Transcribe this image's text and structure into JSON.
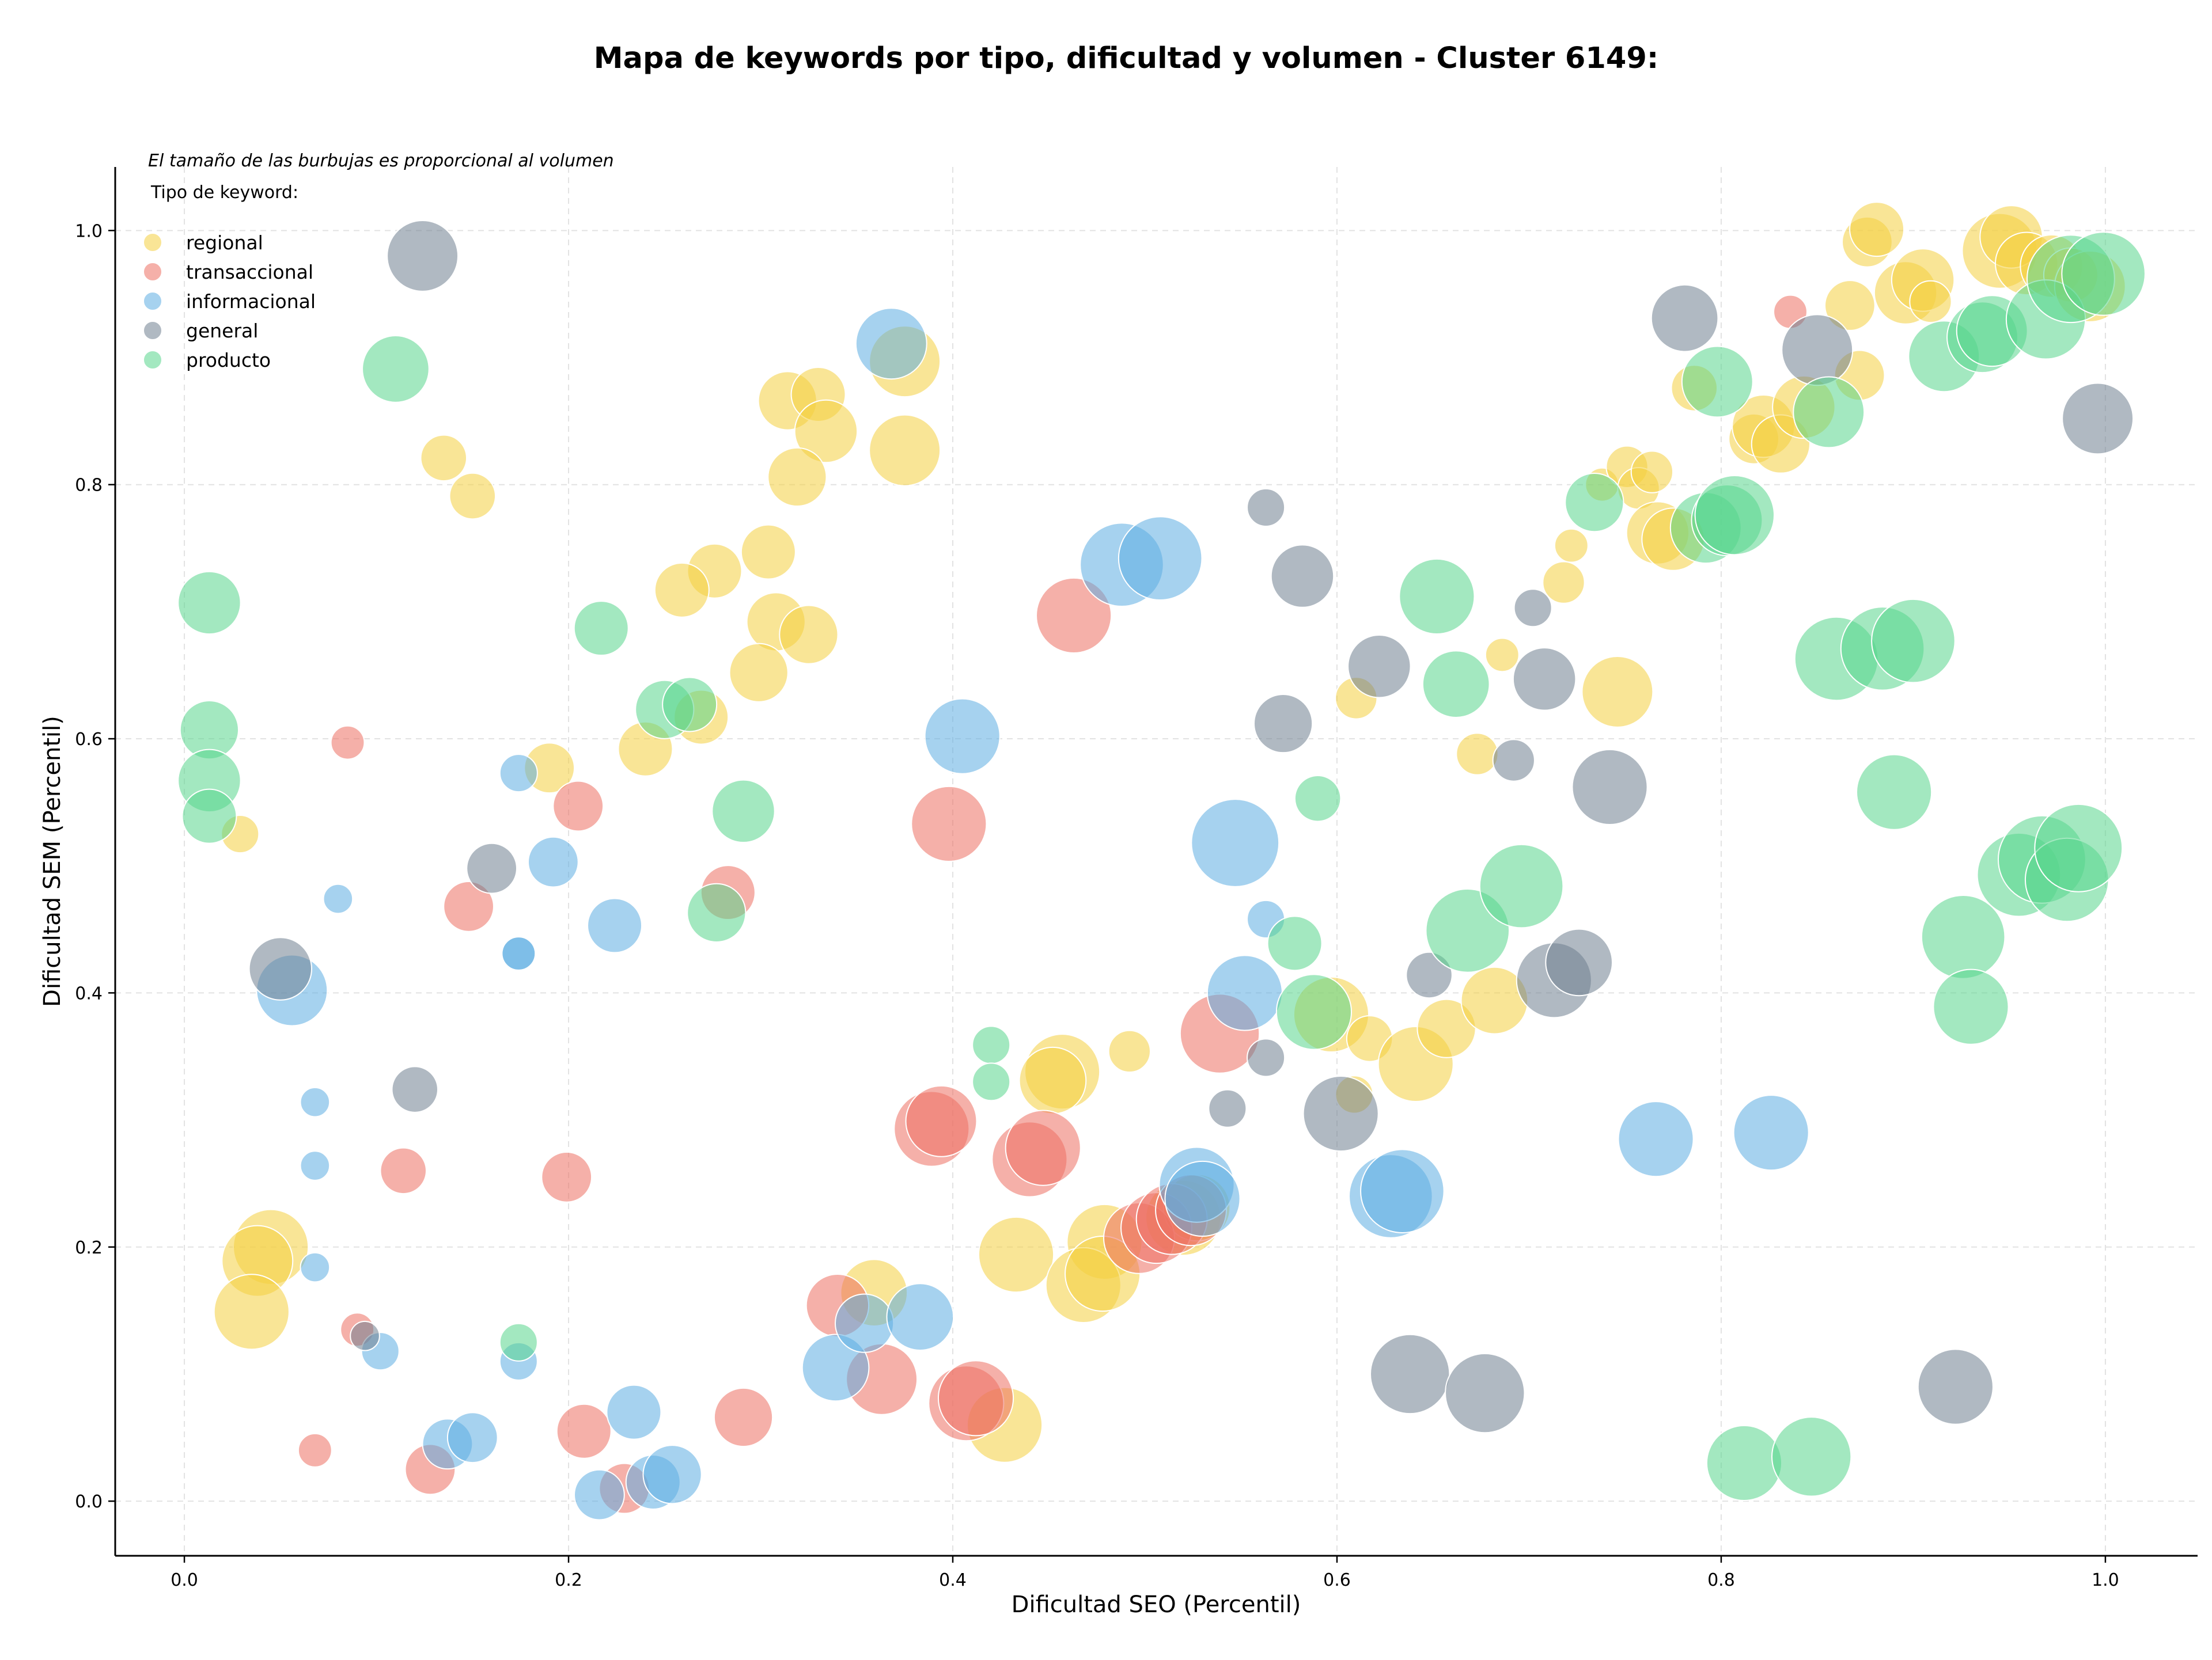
{
  "chart_data": {
    "type": "scatter",
    "title": "Mapa de keywords por tipo, dificultad y volumen - Cluster 6149:",
    "xlabel": "Dificultad SEO (Percentil)",
    "ylabel": "Dificultad SEM (Percentil)",
    "note": "El tamaño de las burbujas es proporcional al volumen",
    "legend_title": "Tipo de keyword:",
    "legend_position": "top-left",
    "grid": true,
    "xlim": [
      -0.036,
      1.048
    ],
    "ylim": [
      -0.043,
      1.05
    ],
    "x_ticks": [
      "0.0",
      "0.2",
      "0.4",
      "0.6",
      "0.8",
      "1.0"
    ],
    "y_ticks": [
      "0.0",
      "0.2",
      "0.4",
      "0.6",
      "0.8",
      "1.0"
    ],
    "series": [
      {
        "name": "regional",
        "color": "#f4d03f",
        "points": [
          [
            0.135,
            0.821,
            11
          ],
          [
            0.15,
            0.791,
            11
          ],
          [
            0.029,
            0.525,
            9
          ],
          [
            0.19,
            0.577,
            12
          ],
          [
            0.045,
            0.2,
            18
          ],
          [
            0.038,
            0.189,
            17
          ],
          [
            0.035,
            0.149,
            18
          ],
          [
            0.314,
            0.866,
            14
          ],
          [
            0.33,
            0.871,
            13
          ],
          [
            0.334,
            0.842,
            15
          ],
          [
            0.319,
            0.806,
            14
          ],
          [
            0.375,
            0.897,
            17
          ],
          [
            0.375,
            0.827,
            17
          ],
          [
            0.304,
            0.747,
            13
          ],
          [
            0.276,
            0.732,
            13
          ],
          [
            0.259,
            0.717,
            13
          ],
          [
            0.308,
            0.692,
            14
          ],
          [
            0.325,
            0.682,
            14
          ],
          [
            0.299,
            0.652,
            14
          ],
          [
            0.269,
            0.617,
            13
          ],
          [
            0.24,
            0.592,
            13
          ],
          [
            0.492,
            0.354,
            10
          ],
          [
            0.433,
            0.194,
            18
          ],
          [
            0.427,
            0.06,
            18
          ],
          [
            0.479,
            0.204,
            18
          ],
          [
            0.468,
            0.17,
            18
          ],
          [
            0.478,
            0.179,
            18
          ],
          [
            0.359,
            0.164,
            16
          ],
          [
            0.457,
            0.338,
            18
          ],
          [
            0.452,
            0.331,
            16
          ],
          [
            0.597,
            0.383,
            18
          ],
          [
            0.617,
            0.364,
            11
          ],
          [
            0.609,
            0.32,
            9
          ],
          [
            0.641,
            0.344,
            18
          ],
          [
            0.657,
            0.372,
            14
          ],
          [
            0.682,
            0.394,
            16
          ],
          [
            0.61,
            0.632,
            10
          ],
          [
            0.686,
            0.666,
            8
          ],
          [
            0.673,
            0.588,
            10
          ],
          [
            0.718,
            0.723,
            10
          ],
          [
            0.722,
            0.752,
            8
          ],
          [
            0.746,
            0.637,
            17
          ],
          [
            0.738,
            0.8,
            8
          ],
          [
            0.751,
            0.814,
            10
          ],
          [
            0.757,
            0.797,
            10
          ],
          [
            0.764,
            0.81,
            10
          ],
          [
            0.767,
            0.762,
            15
          ],
          [
            0.775,
            0.757,
            15
          ],
          [
            0.786,
            0.876,
            11
          ],
          [
            0.817,
            0.836,
            12
          ],
          [
            0.822,
            0.846,
            15
          ],
          [
            0.831,
            0.832,
            14
          ],
          [
            0.843,
            0.861,
            15
          ],
          [
            0.867,
            0.941,
            12
          ],
          [
            0.872,
            0.886,
            12
          ],
          [
            0.876,
            0.991,
            12
          ],
          [
            0.881,
            1.001,
            13
          ],
          [
            0.896,
            0.951,
            15
          ],
          [
            0.905,
            0.961,
            15
          ],
          [
            0.909,
            0.944,
            10
          ],
          [
            0.945,
            0.984,
            18
          ],
          [
            0.951,
            0.995,
            15
          ],
          [
            0.959,
            0.974,
            15
          ],
          [
            0.972,
            0.972,
            15
          ],
          [
            0.982,
            0.965,
            13
          ],
          [
            0.992,
            0.956,
            17
          ],
          [
            0.52,
            0.223,
            18
          ],
          [
            0.527,
            0.231,
            16
          ]
        ]
      },
      {
        "name": "transaccional",
        "color": "#ec7063",
        "points": [
          [
            0.085,
            0.597,
            8
          ],
          [
            0.148,
            0.468,
            12
          ],
          [
            0.205,
            0.547,
            12
          ],
          [
            0.283,
            0.479,
            13
          ],
          [
            0.114,
            0.26,
            11
          ],
          [
            0.199,
            0.255,
            12
          ],
          [
            0.068,
            0.04,
            8
          ],
          [
            0.128,
            0.025,
            12
          ],
          [
            0.09,
            0.135,
            8
          ],
          [
            0.208,
            0.055,
            13
          ],
          [
            0.229,
            0.01,
            12
          ],
          [
            0.291,
            0.066,
            14
          ],
          [
            0.463,
            0.697,
            18
          ],
          [
            0.398,
            0.533,
            18
          ],
          [
            0.389,
            0.293,
            18
          ],
          [
            0.394,
            0.299,
            17
          ],
          [
            0.44,
            0.269,
            18
          ],
          [
            0.447,
            0.278,
            18
          ],
          [
            0.34,
            0.154,
            15
          ],
          [
            0.363,
            0.096,
            17
          ],
          [
            0.407,
            0.077,
            18
          ],
          [
            0.412,
            0.081,
            18
          ],
          [
            0.497,
            0.207,
            17
          ],
          [
            0.506,
            0.215,
            17
          ],
          [
            0.514,
            0.222,
            17
          ],
          [
            0.524,
            0.229,
            17
          ],
          [
            0.539,
            0.368,
            19
          ],
          [
            0.836,
            0.936,
            8
          ]
        ]
      },
      {
        "name": "informacional",
        "color": "#5dade2",
        "points": [
          [
            0.174,
            0.573,
            9
          ],
          [
            0.08,
            0.474,
            7
          ],
          [
            0.192,
            0.503,
            12
          ],
          [
            0.224,
            0.453,
            13
          ],
          [
            0.174,
            0.431,
            8
          ],
          [
            0.174,
            0.431,
            8
          ],
          [
            0.056,
            0.402,
            17
          ],
          [
            0.068,
            0.314,
            7
          ],
          [
            0.068,
            0.264,
            7
          ],
          [
            0.068,
            0.184,
            7
          ],
          [
            0.102,
            0.118,
            9
          ],
          [
            0.174,
            0.11,
            9
          ],
          [
            0.137,
            0.045,
            12
          ],
          [
            0.15,
            0.05,
            12
          ],
          [
            0.216,
            0.005,
            12
          ],
          [
            0.234,
            0.07,
            13
          ],
          [
            0.244,
            0.015,
            13
          ],
          [
            0.254,
            0.021,
            14
          ],
          [
            0.339,
            0.105,
            16
          ],
          [
            0.354,
            0.14,
            14
          ],
          [
            0.383,
            0.145,
            16
          ],
          [
            0.368,
            0.911,
            17
          ],
          [
            0.405,
            0.602,
            18
          ],
          [
            0.488,
            0.737,
            20
          ],
          [
            0.508,
            0.742,
            20
          ],
          [
            0.547,
            0.518,
            21
          ],
          [
            0.552,
            0.4,
            18
          ],
          [
            0.563,
            0.458,
            9
          ],
          [
            0.527,
            0.249,
            18
          ],
          [
            0.53,
            0.238,
            18
          ],
          [
            0.628,
            0.24,
            20
          ],
          [
            0.634,
            0.244,
            20
          ],
          [
            0.766,
            0.285,
            18
          ],
          [
            0.826,
            0.29,
            18
          ]
        ]
      },
      {
        "name": "general",
        "color": "#708090",
        "points": [
          [
            0.124,
            0.98,
            17
          ],
          [
            0.16,
            0.498,
            12
          ],
          [
            0.05,
            0.419,
            15
          ],
          [
            0.12,
            0.324,
            11
          ],
          [
            0.094,
            0.13,
            7
          ],
          [
            0.563,
            0.782,
            9
          ],
          [
            0.582,
            0.728,
            15
          ],
          [
            0.572,
            0.612,
            14
          ],
          [
            0.622,
            0.657,
            15
          ],
          [
            0.702,
            0.703,
            9
          ],
          [
            0.708,
            0.647,
            15
          ],
          [
            0.692,
            0.583,
            10
          ],
          [
            0.742,
            0.562,
            18
          ],
          [
            0.648,
            0.414,
            11
          ],
          [
            0.713,
            0.41,
            18
          ],
          [
            0.726,
            0.424,
            16
          ],
          [
            0.563,
            0.349,
            9
          ],
          [
            0.543,
            0.309,
            9
          ],
          [
            0.602,
            0.305,
            18
          ],
          [
            0.638,
            0.1,
            19
          ],
          [
            0.677,
            0.085,
            19
          ],
          [
            0.781,
            0.931,
            16
          ],
          [
            0.85,
            0.906,
            17
          ],
          [
            0.996,
            0.852,
            17
          ],
          [
            0.922,
            0.09,
            18
          ]
        ]
      },
      {
        "name": "producto",
        "color": "#58d68d",
        "points": [
          [
            0.11,
            0.891,
            16
          ],
          [
            0.013,
            0.707,
            15
          ],
          [
            0.013,
            0.607,
            14
          ],
          [
            0.013,
            0.567,
            15
          ],
          [
            0.013,
            0.539,
            13
          ],
          [
            0.217,
            0.687,
            13
          ],
          [
            0.25,
            0.623,
            14
          ],
          [
            0.263,
            0.627,
            13
          ],
          [
            0.291,
            0.543,
            15
          ],
          [
            0.277,
            0.463,
            14
          ],
          [
            0.174,
            0.125,
            9
          ],
          [
            0.42,
            0.359,
            9
          ],
          [
            0.42,
            0.33,
            9
          ],
          [
            0.59,
            0.553,
            11
          ],
          [
            0.578,
            0.439,
            13
          ],
          [
            0.588,
            0.385,
            18
          ],
          [
            0.652,
            0.712,
            18
          ],
          [
            0.662,
            0.643,
            16
          ],
          [
            0.668,
            0.449,
            20
          ],
          [
            0.696,
            0.484,
            20
          ],
          [
            0.734,
            0.786,
            14
          ],
          [
            0.792,
            0.766,
            17
          ],
          [
            0.798,
            0.881,
            17
          ],
          [
            0.803,
            0.772,
            17
          ],
          [
            0.807,
            0.776,
            19
          ],
          [
            0.856,
            0.857,
            17
          ],
          [
            0.86,
            0.663,
            20
          ],
          [
            0.884,
            0.671,
            20
          ],
          [
            0.9,
            0.677,
            20
          ],
          [
            0.89,
            0.558,
            18
          ],
          [
            0.916,
            0.901,
            17
          ],
          [
            0.936,
            0.916,
            17
          ],
          [
            0.941,
            0.921,
            17
          ],
          [
            0.969,
            0.93,
            19
          ],
          [
            0.982,
            0.962,
            21
          ],
          [
            0.999,
            0.966,
            20
          ],
          [
            0.955,
            0.493,
            20
          ],
          [
            0.967,
            0.505,
            21
          ],
          [
            0.98,
            0.489,
            20
          ],
          [
            0.986,
            0.514,
            21
          ],
          [
            0.926,
            0.444,
            20
          ],
          [
            0.93,
            0.389,
            18
          ],
          [
            0.812,
            0.03,
            18
          ],
          [
            0.847,
            0.035,
            19
          ]
        ]
      }
    ]
  }
}
